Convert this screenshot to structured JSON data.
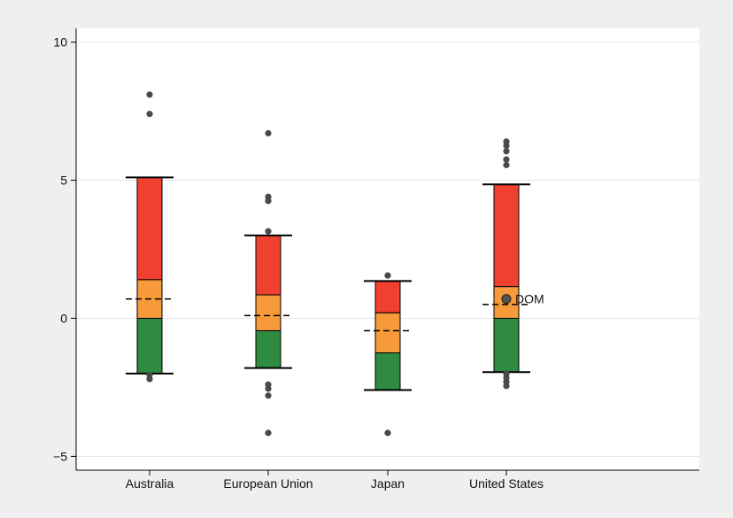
{
  "chart_data": {
    "type": "box",
    "categories": [
      "Australia",
      "European Union",
      "Japan",
      "United States"
    ],
    "ylim": [
      -5.5,
      10.5
    ],
    "yticks": [
      -5,
      0,
      5,
      10
    ],
    "ytick_labels": [
      "−5",
      "0",
      "5",
      "10"
    ],
    "grid": true,
    "legend": "none",
    "colors": {
      "upper": "#f04030",
      "mid": "#f69a3a",
      "lower": "#2e8b40",
      "outlier": "#4a4a4a",
      "whisker": "#000000"
    },
    "boxes": [
      {
        "category": "Australia",
        "whisker_low": -2.0,
        "lower_low": -2.0,
        "lower_high": 0.0,
        "mid_high": 1.4,
        "upper_high": 5.1,
        "whisker_high": 5.1,
        "mean": 0.7
      },
      {
        "category": "European Union",
        "whisker_low": -1.8,
        "lower_low": -1.8,
        "lower_high": -0.45,
        "mid_high": 0.85,
        "upper_high": 3.0,
        "whisker_high": 3.0,
        "mean": 0.1
      },
      {
        "category": "Japan",
        "whisker_low": -2.6,
        "lower_low": -2.6,
        "lower_high": -1.25,
        "mid_high": 0.2,
        "upper_high": 1.35,
        "whisker_high": 1.35,
        "mean": -0.45
      },
      {
        "category": "United States",
        "whisker_low": -1.95,
        "lower_low": -1.95,
        "lower_high": 0.0,
        "mid_high": 1.15,
        "upper_high": 4.85,
        "whisker_high": 4.85,
        "mean": 0.5
      }
    ],
    "outliers": [
      {
        "category": "Australia",
        "values": [
          8.1,
          7.4,
          -2.05,
          -2.2
        ]
      },
      {
        "category": "European Union",
        "values": [
          6.7,
          4.4,
          4.25,
          3.15,
          -2.4,
          -2.55,
          -2.8,
          -4.15
        ]
      },
      {
        "category": "Japan",
        "values": [
          1.55,
          -4.15
        ]
      },
      {
        "category": "United States",
        "values": [
          6.4,
          6.25,
          6.05,
          5.75,
          5.55,
          -2.0,
          -2.15,
          -2.3,
          -2.45
        ]
      }
    ],
    "annotations": [
      {
        "category": "United States",
        "y": 0.7,
        "text": "DOM"
      }
    ]
  }
}
